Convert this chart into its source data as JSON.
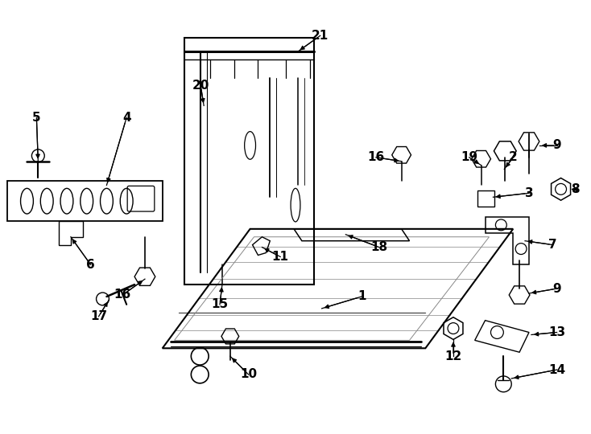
{
  "bg_color": "#ffffff",
  "line_color": "#000000",
  "fig_width": 7.34,
  "fig_height": 5.4,
  "dpi": 100,
  "font_size_label": 11,
  "font_weight": "bold"
}
